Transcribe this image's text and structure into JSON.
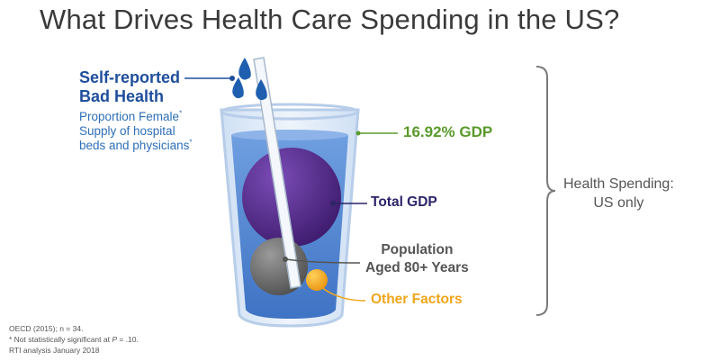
{
  "title": "What Drives Health Care Spending in the US?",
  "glass": {
    "bad_health_line1": "Self-reported",
    "bad_health_line2": "Bad Health",
    "drivers": [
      {
        "text": "Proportion Female",
        "note": "*"
      },
      {
        "text": "Supply of hospital",
        "note": ""
      },
      {
        "text": "beds and physicians",
        "note": "*"
      }
    ],
    "gdp_percent": "16.92% GDP",
    "total_gdp": "Total GDP",
    "population_line1": "Population",
    "population_line2": "Aged 80+ Years",
    "other_factors": "Other Factors"
  },
  "bracket_label": {
    "line1": "Health Spending:",
    "line2": "US only"
  },
  "footnotes": {
    "line1": "OECD (2015); n = 34.",
    "line2_prefix": "* Not statistically significant at ",
    "line2_p": "P",
    "line2_suffix": " = .10.",
    "line3": "RTI analysis January 2018"
  },
  "colors": {
    "title": "#3a3a3a",
    "bad_health": "#1f4e9c",
    "drivers": "#2d6fb7",
    "gdp_line": "#5a9a2c",
    "total_gdp": "#2b2468",
    "population": "#555555",
    "other_factors": "#f0a51a",
    "water": "#5b8fd6",
    "purple_ball": "#5a2d91",
    "gray_ball": "#6a6a6a",
    "orange_ball": "#f2a61c"
  },
  "icons": [
    "water-drops-icon",
    "straw-icon",
    "bracket-icon"
  ]
}
